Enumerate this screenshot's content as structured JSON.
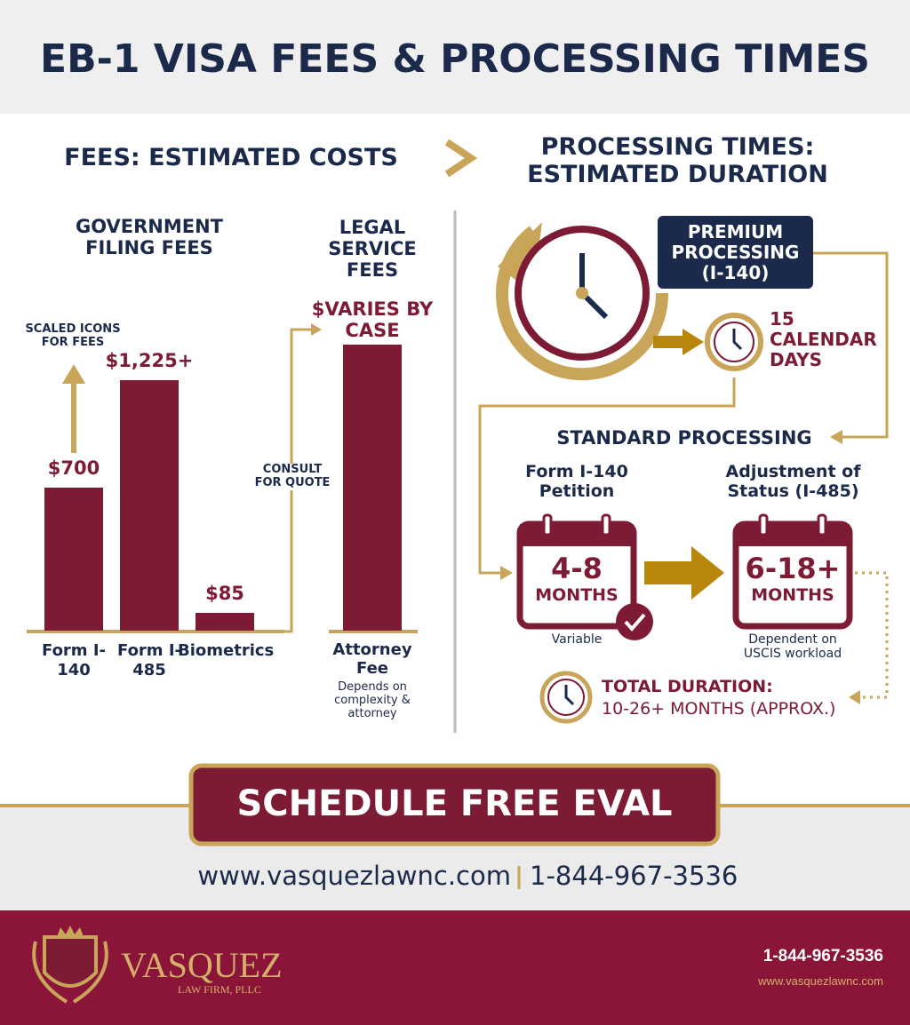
{
  "header": {
    "title": "EB-1 VISA FEES & PROCESSING TIMES"
  },
  "fees": {
    "heading": "FEES: ESTIMATED COSTS",
    "government": {
      "heading": "GOVERNMENT FILING FEES",
      "note": "SCALED ICONS FOR FEES",
      "items": [
        {
          "label": "Form I-140",
          "value": 700,
          "value_label": "$700"
        },
        {
          "label": "Form I-485",
          "value": 1225,
          "value_label": "$1,225+"
        },
        {
          "label": "Biometrics",
          "value": 85,
          "value_label": "$85"
        }
      ]
    },
    "legal": {
      "heading": "LEGAL SERVICE FEES",
      "value_label": "$VARIES BY CASE",
      "note": "CONSULT FOR QUOTE",
      "label": "Attorney Fee",
      "detail": "Depends on complexity & attorney"
    }
  },
  "processing": {
    "heading": "PROCESSING TIMES: ESTIMATED DURATION",
    "premium": {
      "label": "PREMIUM PROCESSING (I-140)",
      "duration": "15 CALENDAR DAYS"
    },
    "standard": {
      "heading": "STANDARD PROCESSING",
      "steps": [
        {
          "label": "Form I-140 Petition",
          "range": "4-8",
          "unit": "MONTHS",
          "note": "Variable"
        },
        {
          "label": "Adjustment of Status (I-485)",
          "range": "6-18+",
          "unit": "MONTHS",
          "note": "Dependent on USCIS workload"
        }
      ]
    },
    "total": {
      "label": "TOTAL DURATION:",
      "value": "10-26+ MONTHS (APPROX.)"
    }
  },
  "cta": {
    "button": "SCHEDULE FREE EVAL",
    "website": "www.vasquezlawnc.com",
    "phone": "1-844-967-3536"
  },
  "footer": {
    "logo_name": "VASQUEZ",
    "logo_sub": "LAW FIRM, PLLC",
    "phone": "1-844-967-3536",
    "website": "www.vasquezlawnc.com"
  }
}
